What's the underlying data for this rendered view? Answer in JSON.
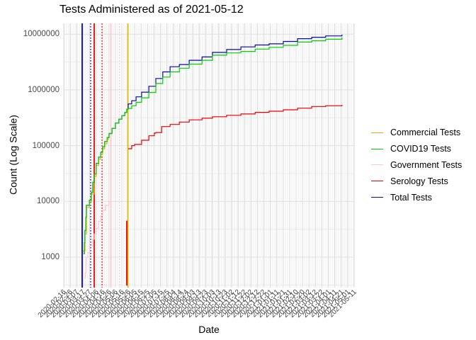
{
  "chart_data": {
    "type": "line",
    "title": "Tests Administered as of 2021-05-12",
    "xlabel": "Date",
    "ylabel": "Count (Log Scale)",
    "yscale": "log",
    "ylim": [
      300,
      15000000
    ],
    "grid": "on",
    "legend_position": "right",
    "ytick_labels": [
      "10000000",
      "1000000",
      "100000",
      "10000",
      "1000"
    ],
    "ytick_values": [
      10000000,
      1000000,
      100000,
      10000,
      1000
    ],
    "xtick_labels": [
      "2020-02-16",
      "2020-02-26",
      "2020-03-07",
      "2020-03-17",
      "2020-03-27",
      "2020-04-06",
      "2020-04-16",
      "2020-04-26",
      "2020-05-06",
      "2020-05-16",
      "2020-05-26",
      "2020-06-05",
      "2020-06-15",
      "2020-06-25",
      "2020-07-05",
      "2020-07-15",
      "2020-07-25",
      "2020-08-04",
      "2020-08-14",
      "2020-08-24",
      "2020-09-03",
      "2020-09-13",
      "2020-09-23",
      "2020-10-03",
      "2020-10-13",
      "2020-10-23",
      "2020-11-02",
      "2020-11-12",
      "2020-11-22",
      "2020-12-02",
      "2020-12-12",
      "2020-12-22",
      "2021-01-01",
      "2021-01-11",
      "2021-01-21",
      "2021-01-31",
      "2021-02-10",
      "2021-02-20",
      "2021-03-02",
      "2021-03-12",
      "2021-03-22",
      "2021-04-01",
      "2021-04-11",
      "2021-04-21",
      "2021-05-01",
      "2021-05-11"
    ],
    "series": [
      {
        "name": "Commercial Tests",
        "color": "#FFA500",
        "points": [
          [
            0.066,
            1250
          ],
          [
            0.068,
            1300
          ],
          [
            0.073,
            2600
          ],
          [
            0.078,
            7800
          ],
          [
            0.088,
            9800
          ],
          [
            0.095,
            13500
          ],
          [
            0.105,
            28000
          ],
          [
            0.112,
            44000
          ],
          [
            0.12,
            57000
          ],
          [
            0.127,
            70000
          ],
          [
            0.134,
            88000
          ],
          [
            0.141,
            108000
          ],
          [
            0.149,
            130000
          ],
          [
            0.154,
            145000
          ]
        ]
      },
      {
        "name": "COVID19 Tests",
        "color": "#00CF00",
        "points": [
          [
            0.068,
            1150
          ],
          [
            0.071,
            1800
          ],
          [
            0.073,
            3000
          ],
          [
            0.076,
            5200
          ],
          [
            0.078,
            8500
          ],
          [
            0.088,
            10500
          ],
          [
            0.095,
            14500
          ],
          [
            0.1,
            22000
          ],
          [
            0.105,
            31000
          ],
          [
            0.112,
            48000
          ],
          [
            0.12,
            62000
          ],
          [
            0.127,
            76000
          ],
          [
            0.134,
            95000
          ],
          [
            0.141,
            118000
          ],
          [
            0.149,
            140000
          ],
          [
            0.156,
            165000
          ],
          [
            0.166,
            205000
          ],
          [
            0.178,
            255000
          ],
          [
            0.19,
            300000
          ],
          [
            0.2,
            345000
          ],
          [
            0.21,
            395000
          ],
          [
            0.217,
            450000
          ],
          [
            0.222,
            465000
          ],
          [
            0.234,
            520000
          ],
          [
            0.249,
            600000
          ],
          [
            0.268,
            720000
          ],
          [
            0.293,
            900000
          ],
          [
            0.317,
            1300000
          ],
          [
            0.341,
            1700000
          ],
          [
            0.366,
            2100000
          ],
          [
            0.398,
            2450000
          ],
          [
            0.432,
            2900000
          ],
          [
            0.476,
            3400000
          ],
          [
            0.512,
            4200000
          ],
          [
            0.561,
            4600000
          ],
          [
            0.61,
            4900000
          ],
          [
            0.659,
            5400000
          ],
          [
            0.707,
            5800000
          ],
          [
            0.756,
            6300000
          ],
          [
            0.805,
            7200000
          ],
          [
            0.854,
            7600000
          ],
          [
            0.902,
            8100000
          ],
          [
            0.958,
            8700000
          ]
        ]
      },
      {
        "name": "Government Tests",
        "color": "#FFC5CE",
        "points": [
          [
            0.071,
            425
          ],
          [
            0.074,
            520
          ],
          [
            0.076,
            700
          ],
          [
            0.077,
            1000
          ],
          [
            0.083,
            1200
          ],
          [
            0.09,
            1600
          ],
          [
            0.098,
            2100
          ],
          [
            0.105,
            2600
          ],
          [
            0.112,
            3300
          ],
          [
            0.12,
            4400
          ],
          [
            0.127,
            5500
          ],
          [
            0.134,
            6900
          ],
          [
            0.144,
            8500
          ],
          [
            0.155,
            10400
          ]
        ]
      },
      {
        "name": "Serology Tests",
        "color": "#EE0000",
        "points": [
          [
            0.222,
            88000
          ],
          [
            0.234,
            100000
          ],
          [
            0.244,
            105000
          ],
          [
            0.268,
            125000
          ],
          [
            0.293,
            150000
          ],
          [
            0.312,
            168000
          ],
          [
            0.317,
            172000
          ],
          [
            0.337,
            220000
          ],
          [
            0.366,
            240000
          ],
          [
            0.398,
            265000
          ],
          [
            0.432,
            290000
          ],
          [
            0.476,
            310000
          ],
          [
            0.512,
            330000
          ],
          [
            0.561,
            350000
          ],
          [
            0.61,
            370000
          ],
          [
            0.659,
            395000
          ],
          [
            0.707,
            415000
          ],
          [
            0.756,
            440000
          ],
          [
            0.805,
            470000
          ],
          [
            0.854,
            505000
          ],
          [
            0.902,
            520000
          ],
          [
            0.958,
            540000
          ]
        ]
      },
      {
        "name": "Total Tests",
        "color": "#0909B4",
        "points": [
          [
            0.068,
            1150
          ],
          [
            0.071,
            1800
          ],
          [
            0.073,
            3000
          ],
          [
            0.076,
            5200
          ],
          [
            0.078,
            8500
          ],
          [
            0.088,
            10500
          ],
          [
            0.095,
            14500
          ],
          [
            0.1,
            22000
          ],
          [
            0.105,
            31000
          ],
          [
            0.112,
            48000
          ],
          [
            0.12,
            62000
          ],
          [
            0.127,
            76000
          ],
          [
            0.134,
            95000
          ],
          [
            0.141,
            118000
          ],
          [
            0.149,
            140000
          ],
          [
            0.156,
            165000
          ],
          [
            0.166,
            205000
          ],
          [
            0.178,
            255000
          ],
          [
            0.19,
            300000
          ],
          [
            0.2,
            345000
          ],
          [
            0.21,
            395000
          ],
          [
            0.217,
            450000
          ],
          [
            0.222,
            560000
          ],
          [
            0.234,
            640000
          ],
          [
            0.249,
            750000
          ],
          [
            0.268,
            910000
          ],
          [
            0.293,
            1160000
          ],
          [
            0.317,
            1600000
          ],
          [
            0.341,
            2100000
          ],
          [
            0.366,
            2600000
          ],
          [
            0.398,
            2850000
          ],
          [
            0.432,
            3400000
          ],
          [
            0.476,
            3900000
          ],
          [
            0.512,
            4700000
          ],
          [
            0.561,
            5300000
          ],
          [
            0.61,
            5900000
          ],
          [
            0.659,
            6400000
          ],
          [
            0.707,
            6700000
          ],
          [
            0.756,
            7400000
          ],
          [
            0.805,
            8300000
          ],
          [
            0.854,
            8800000
          ],
          [
            0.902,
            9300000
          ],
          [
            0.958,
            9800000
          ]
        ]
      }
    ],
    "vlines": [
      {
        "color": "#0909B4",
        "style": "solid",
        "frac": 0.0634
      },
      {
        "color": "#0909B4",
        "style": "dotted",
        "frac": 0.0927
      },
      {
        "color": "#EE0000",
        "style": "solid",
        "frac": 0.1049
      },
      {
        "color": "#EE0000",
        "style": "dotted",
        "frac": 0.1317
      },
      {
        "color": "#FFC5CE",
        "style": "solid",
        "frac": 0.1622
      },
      {
        "color": "#FFC5CE",
        "style": "dotted",
        "frac": 0.1915
      },
      {
        "color": "#E6B800",
        "style": "solid",
        "frac": 0.2207
      }
    ],
    "partial_vline": {
      "color": "#EE0000",
      "frac": 0.2171,
      "value_top": 4500
    }
  }
}
